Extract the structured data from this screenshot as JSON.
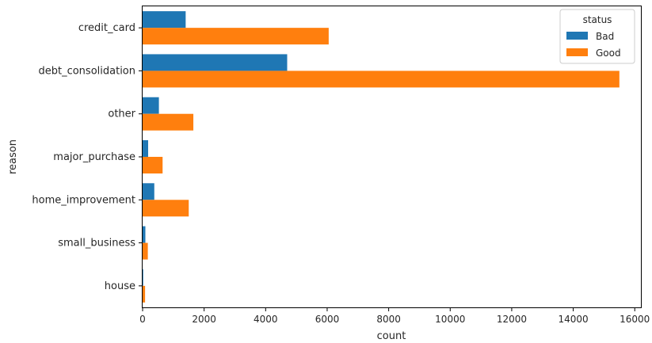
{
  "chart_data": {
    "type": "bar",
    "orientation": "horizontal",
    "categories": [
      "credit_card",
      "debt_consolidation",
      "other",
      "major_purchase",
      "home_improvement",
      "small_business",
      "house"
    ],
    "series": [
      {
        "name": "Bad",
        "color": "#1f77b4",
        "values": [
          1400,
          4700,
          530,
          180,
          380,
          90,
          20
        ]
      },
      {
        "name": "Good",
        "color": "#ff7f0e",
        "values": [
          6050,
          15500,
          1650,
          650,
          1500,
          170,
          80
        ]
      }
    ],
    "xlabel": "count",
    "ylabel": "reason",
    "xlim": [
      0,
      16200
    ],
    "xticks": [
      "0",
      "2000",
      "4000",
      "6000",
      "8000",
      "10000",
      "12000",
      "14000",
      "16000"
    ],
    "legend": {
      "title": "status",
      "placement": "top-right",
      "entries": [
        "Bad",
        "Good"
      ]
    },
    "grid": false
  }
}
